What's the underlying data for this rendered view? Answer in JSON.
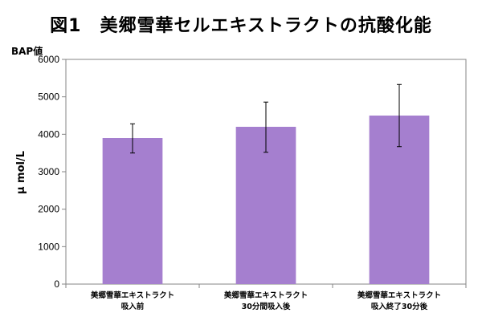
{
  "chart_data": {
    "type": "bar",
    "title": "図1　美郷雪華セルエキストラクトの抗酸化能",
    "y_top_label": "BAP値",
    "ylabel": "μ mol/L",
    "xlabel": "",
    "ylim": [
      0,
      6000
    ],
    "yticks": [
      0,
      1000,
      2000,
      3000,
      4000,
      5000,
      6000
    ],
    "ytick_labels": [
      "0",
      "1000",
      "2000",
      "3000",
      "4000",
      "5000",
      "6000"
    ],
    "grid": false,
    "legend": "none",
    "bar_color": "#A57FCF",
    "categories": [
      {
        "line1": "美郷雪華エキストラクト",
        "line2": "吸入前"
      },
      {
        "line1": "美郷雪華エキストラクト",
        "line2": "30分間吸入後"
      },
      {
        "line1": "美郷雪華エキストラクト",
        "line2": "吸入終了30分後"
      }
    ],
    "values": [
      3900,
      4200,
      4500
    ],
    "error_low": [
      3500,
      3520,
      3670
    ],
    "error_high": [
      4280,
      4860,
      5330
    ]
  }
}
